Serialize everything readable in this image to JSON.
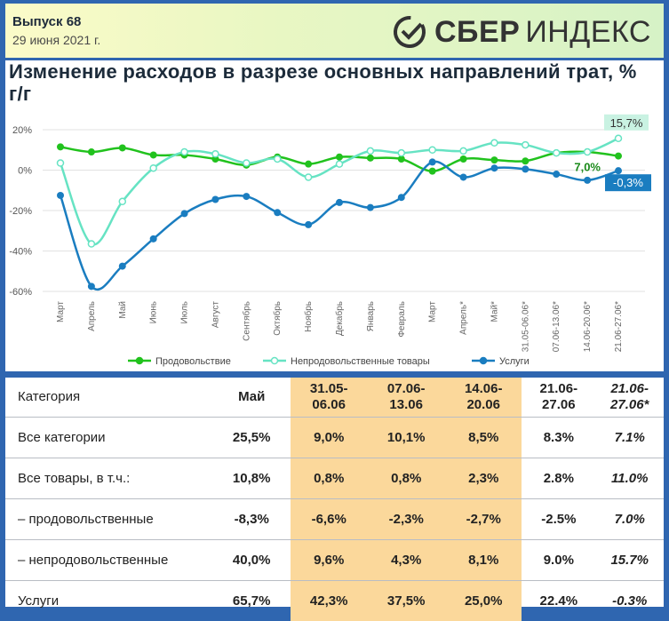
{
  "header": {
    "issue": "Выпуск 68",
    "date": "29 июня 2021 г.",
    "logo_bold": "СБЕР",
    "logo_light": "ИНДЕКС"
  },
  "chart_data": {
    "type": "line",
    "title": "Изменение расходов в разрезе основных направлений трат, % г/г",
    "categories": [
      "Март",
      "Апрель",
      "Май",
      "Июнь",
      "Июль",
      "Август",
      "Сентябрь",
      "Октябрь",
      "Ноябрь",
      "Декабрь",
      "Январь",
      "Февраль",
      "Март",
      "Апрель*",
      "Май*",
      "31.05-06.06*",
      "07.06-13.06*",
      "14.06-20.06*",
      "21.06-27.06*"
    ],
    "y_ticks": [
      "20%",
      "0%",
      "-20%",
      "-40%",
      "-60%"
    ],
    "ylim": [
      -60,
      20
    ],
    "series": [
      {
        "name": "Продовольствие",
        "color": "#21c21d",
        "values": [
          11.5,
          9,
          11,
          7.5,
          7.5,
          5.5,
          2.5,
          6.5,
          3,
          6.5,
          6,
          5.5,
          -0.5,
          5.5,
          5,
          4.5,
          8.5,
          9,
          7.0
        ]
      },
      {
        "name": "Непродовольственные товары",
        "color": "#66e3c3",
        "values": [
          3.5,
          -36.5,
          -15.5,
          1,
          9,
          8,
          3.5,
          5.5,
          -3.5,
          3,
          9.5,
          8.5,
          10,
          9.5,
          13.5,
          12.5,
          8.5,
          9,
          15.7
        ]
      },
      {
        "name": "Услуги",
        "color": "#1a7dc0",
        "values": [
          -12.5,
          -57.5,
          -47.5,
          -34,
          -21.5,
          -14.5,
          -13,
          -21,
          -27,
          -16,
          -18.5,
          -13.5,
          4,
          -3.5,
          1,
          0.5,
          -2,
          -5,
          -0.3
        ]
      }
    ],
    "annotations": [
      {
        "text": "15,7%",
        "series": "Непродовольственные товары"
      },
      {
        "text": "7,0%",
        "series": "Продовольствие"
      },
      {
        "text": "-0,3%",
        "series": "Услуги"
      }
    ],
    "legend": "bottom"
  },
  "table": {
    "headers": [
      "Категория",
      "Май",
      "31.05-\n06.06",
      "07.06-\n13.06",
      "14.06-\n20.06",
      "21.06-\n27.06",
      "21.06-\n27.06*"
    ],
    "rows": [
      {
        "cat": "Все категории",
        "values": [
          "25,5%",
          "9,0%",
          "10,1%",
          "8,5%",
          "8.3%",
          "7.1%"
        ]
      },
      {
        "cat": "Все товары, в т.ч.:",
        "values": [
          "10,8%",
          "0,8%",
          "0,8%",
          "2,3%",
          "2.8%",
          "11.0%"
        ]
      },
      {
        "cat": "– продовольственные",
        "values": [
          "-8,3%",
          "-6,6%",
          "-2,3%",
          "-2,7%",
          "-2.5%",
          "7.0%"
        ]
      },
      {
        "cat": "– непродовольственные",
        "values": [
          "40,0%",
          "9,6%",
          "4,3%",
          "8,1%",
          "9.0%",
          "15.7%"
        ]
      },
      {
        "cat": "Услуги",
        "values": [
          "65,7%",
          "42,3%",
          "37,5%",
          "25,0%",
          "22.4%",
          "-0.3%"
        ]
      }
    ]
  }
}
